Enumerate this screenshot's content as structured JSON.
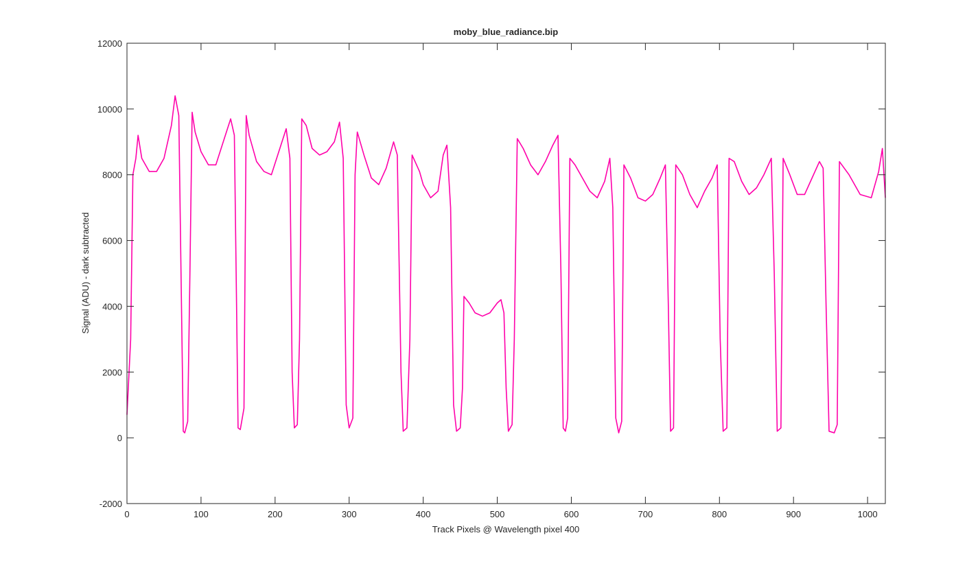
{
  "chart_data": {
    "type": "line",
    "title": "moby_blue_radiance.bip",
    "x_label": "Track Pixels @ Wavelength pixel 400",
    "y_label": "Signal (ADU) - dark subtracted",
    "xlim": [
      0,
      1024
    ],
    "ylim": [
      -2000,
      12000
    ],
    "xticks": [
      0,
      100,
      200,
      300,
      400,
      500,
      600,
      700,
      800,
      900,
      1000
    ],
    "yticks": [
      -2000,
      0,
      2000,
      4000,
      6000,
      8000,
      10000,
      12000
    ],
    "grid": false,
    "x": [
      0,
      5,
      8,
      12,
      15,
      20,
      30,
      40,
      50,
      60,
      65,
      70,
      73,
      76,
      78,
      82,
      85,
      88,
      92,
      100,
      110,
      120,
      130,
      140,
      145,
      148,
      150,
      153,
      158,
      161,
      165,
      175,
      185,
      195,
      205,
      215,
      220,
      223,
      226,
      230,
      233,
      236,
      242,
      250,
      260,
      270,
      280,
      287,
      292,
      296,
      300,
      305,
      308,
      311,
      320,
      330,
      340,
      350,
      360,
      365,
      370,
      373,
      378,
      382,
      385,
      395,
      400,
      410,
      420,
      427,
      432,
      437,
      441,
      445,
      450,
      453,
      455,
      462,
      470,
      480,
      490,
      500,
      505,
      509,
      512,
      515,
      520,
      523,
      527,
      535,
      545,
      555,
      565,
      575,
      582,
      586,
      589,
      592,
      595,
      598,
      605,
      615,
      625,
      635,
      645,
      652,
      656,
      660,
      664,
      668,
      671,
      680,
      690,
      700,
      710,
      720,
      727,
      731,
      734,
      738,
      741,
      750,
      760,
      770,
      780,
      790,
      797,
      801,
      805,
      810,
      813,
      820,
      830,
      840,
      850,
      860,
      870,
      874,
      878,
      883,
      886,
      895,
      905,
      915,
      925,
      935,
      940,
      944,
      948,
      955,
      959,
      962,
      975,
      990,
      1005,
      1015,
      1020,
      1024
    ],
    "series": [
      {
        "color": "#ff00aa",
        "values": [
          700,
          3000,
          8000,
          8500,
          9200,
          8500,
          8100,
          8100,
          8500,
          9500,
          10400,
          9800,
          5000,
          200,
          150,
          500,
          5000,
          9900,
          9300,
          8700,
          8300,
          8300,
          9000,
          9700,
          9200,
          4000,
          300,
          250,
          900,
          9800,
          9200,
          8400,
          8100,
          8000,
          8700,
          9400,
          8500,
          2000,
          300,
          400,
          3000,
          9700,
          9500,
          8800,
          8600,
          8700,
          9000,
          9600,
          8500,
          1000,
          300,
          600,
          8000,
          9300,
          8600,
          7900,
          7700,
          8200,
          9000,
          8600,
          2000,
          200,
          300,
          3000,
          8600,
          8100,
          7700,
          7300,
          7500,
          8600,
          8900,
          7000,
          1000,
          200,
          300,
          1500,
          4300,
          4100,
          3800,
          3700,
          3800,
          4100,
          4200,
          3800,
          1500,
          200,
          400,
          3000,
          9100,
          8800,
          8300,
          8000,
          8400,
          8900,
          9200,
          5000,
          300,
          200,
          600,
          8500,
          8300,
          7900,
          7500,
          7300,
          7800,
          8500,
          7000,
          600,
          150,
          500,
          8300,
          7900,
          7300,
          7200,
          7400,
          7900,
          8300,
          4000,
          200,
          300,
          8300,
          8000,
          7400,
          7000,
          7500,
          7900,
          8300,
          3000,
          200,
          300,
          8500,
          8400,
          7800,
          7400,
          7600,
          8000,
          8500,
          5000,
          200,
          300,
          8500,
          8000,
          7400,
          7400,
          7900,
          8400,
          8200,
          4000,
          200,
          150,
          400,
          8400,
          8000,
          7400,
          7300,
          8100,
          8800,
          7300
        ]
      }
    ]
  }
}
